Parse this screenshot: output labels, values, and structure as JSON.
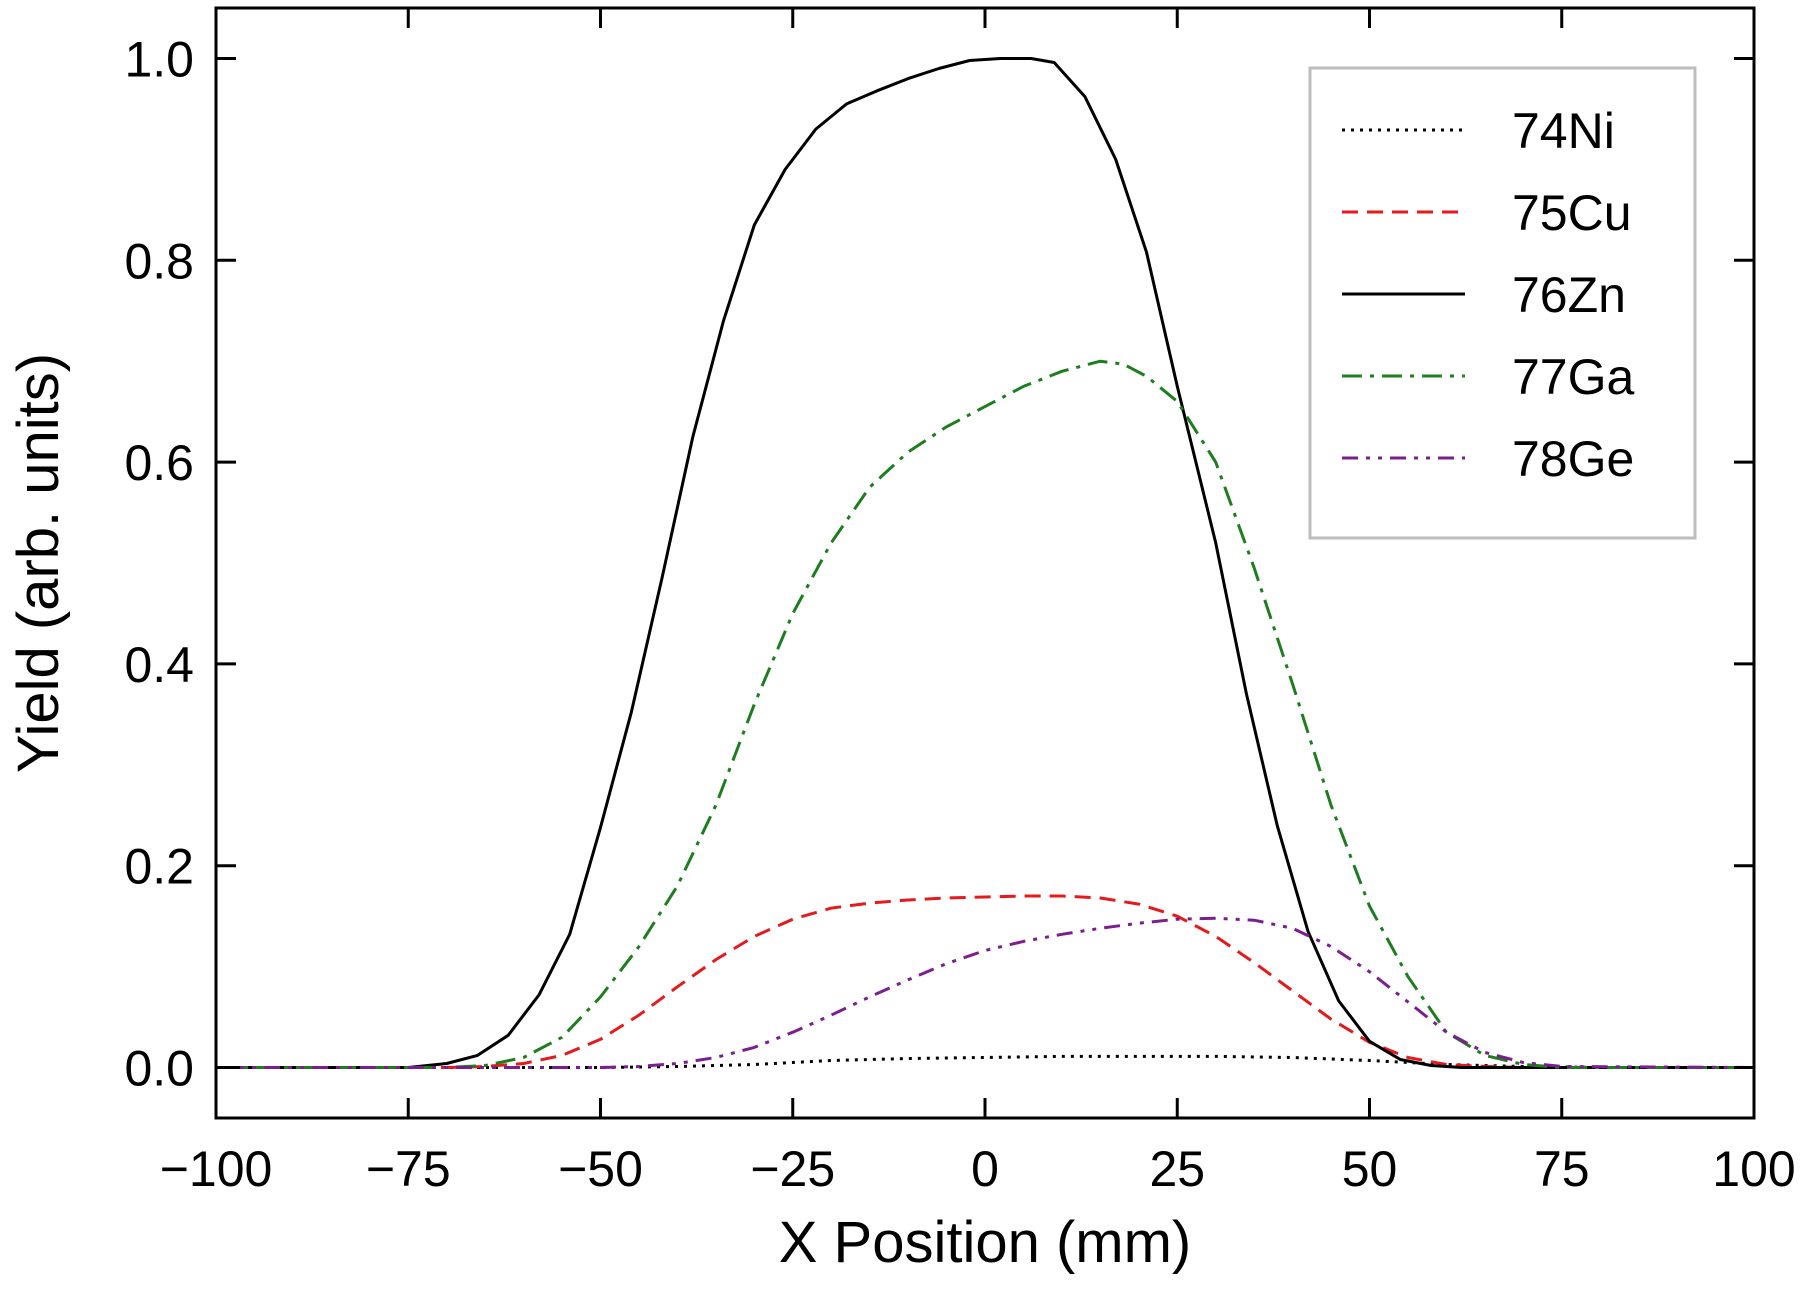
{
  "chart_data": {
    "type": "line",
    "xlabel": "X Position (mm)",
    "ylabel": "Yield (arb. units)",
    "xlim": [
      -100,
      100
    ],
    "ylim": [
      -0.05,
      1.05
    ],
    "xticks": [
      -100,
      -75,
      -50,
      -25,
      0,
      25,
      50,
      75,
      100
    ],
    "xtick_labels": [
      "−100",
      "−75",
      "−50",
      "−25",
      "0",
      "25",
      "50",
      "75",
      "100"
    ],
    "yticks": [
      0.0,
      0.2,
      0.4,
      0.6,
      0.8,
      1.0
    ],
    "ytick_labels": [
      "0.0",
      "0.2",
      "0.4",
      "0.6",
      "0.8",
      "1.0"
    ],
    "grid": false,
    "legend_position": "top-right",
    "series": [
      {
        "name": "74Ni",
        "color": "#000000",
        "dash": "dotted",
        "x": [
          -100,
          -75,
          -60,
          -50,
          -40,
          -30,
          -20,
          -10,
          0,
          10,
          20,
          30,
          40,
          50,
          60,
          70,
          80,
          100
        ],
        "y": [
          0,
          0,
          0,
          0,
          0.001,
          0.003,
          0.007,
          0.009,
          0.01,
          0.011,
          0.011,
          0.011,
          0.01,
          0.007,
          0.003,
          0.001,
          0,
          0
        ]
      },
      {
        "name": "75Cu",
        "color": "#e41a1c",
        "dash": "dashed",
        "x": [
          -100,
          -70,
          -65,
          -60,
          -55,
          -50,
          -45,
          -40,
          -35,
          -30,
          -25,
          -20,
          -15,
          -10,
          -5,
          0,
          5,
          10,
          15,
          20,
          25,
          30,
          35,
          40,
          45,
          50,
          55,
          60,
          65,
          70,
          80,
          100
        ],
        "y": [
          0,
          0,
          0.001,
          0.004,
          0.012,
          0.028,
          0.052,
          0.08,
          0.107,
          0.13,
          0.147,
          0.158,
          0.163,
          0.166,
          0.168,
          0.169,
          0.17,
          0.17,
          0.168,
          0.162,
          0.15,
          0.13,
          0.104,
          0.076,
          0.048,
          0.025,
          0.01,
          0.003,
          0.001,
          0,
          0,
          0
        ]
      },
      {
        "name": "76Zn",
        "color": "#000000",
        "dash": "solid",
        "x": [
          -100,
          -75,
          -70,
          -66,
          -62,
          -58,
          -54,
          -50,
          -46,
          -42,
          -38,
          -34,
          -30,
          -26,
          -22,
          -18,
          -14,
          -10,
          -6,
          -2,
          2,
          6,
          9,
          13,
          17,
          21,
          25,
          30,
          34,
          38,
          42,
          46,
          50,
          54,
          58,
          62,
          66,
          70,
          75,
          100
        ],
        "y": [
          0,
          0,
          0.004,
          0.012,
          0.032,
          0.072,
          0.132,
          0.238,
          0.352,
          0.485,
          0.625,
          0.74,
          0.835,
          0.89,
          0.93,
          0.955,
          0.968,
          0.98,
          0.99,
          0.998,
          1.0,
          1.0,
          0.996,
          0.962,
          0.9,
          0.808,
          0.675,
          0.52,
          0.37,
          0.24,
          0.135,
          0.066,
          0.026,
          0.008,
          0.002,
          0,
          0,
          0,
          0,
          0
        ]
      },
      {
        "name": "77Ga",
        "color": "#1e7d1e",
        "dash": "dashdot",
        "x": [
          -100,
          -70,
          -65,
          -60,
          -55,
          -50,
          -45,
          -40,
          -35,
          -30,
          -25,
          -20,
          -15,
          -10,
          -5,
          0,
          5,
          10,
          15,
          18,
          21,
          25,
          30,
          35,
          40,
          45,
          50,
          55,
          60,
          65,
          70,
          75,
          100
        ],
        "y": [
          0,
          0,
          0.002,
          0.01,
          0.03,
          0.07,
          0.12,
          0.18,
          0.26,
          0.36,
          0.45,
          0.52,
          0.575,
          0.61,
          0.635,
          0.655,
          0.675,
          0.69,
          0.7,
          0.697,
          0.685,
          0.66,
          0.6,
          0.495,
          0.38,
          0.26,
          0.16,
          0.09,
          0.035,
          0.012,
          0.003,
          0,
          0
        ]
      },
      {
        "name": "78Ge",
        "color": "#7b1f8f",
        "dash": "dashdotdot",
        "x": [
          -100,
          -50,
          -45,
          -40,
          -35,
          -30,
          -25,
          -20,
          -15,
          -10,
          -5,
          0,
          5,
          10,
          15,
          20,
          25,
          30,
          35,
          40,
          45,
          50,
          55,
          60,
          65,
          70,
          75,
          100
        ],
        "y": [
          0,
          0,
          0.001,
          0.004,
          0.01,
          0.02,
          0.035,
          0.052,
          0.07,
          0.087,
          0.103,
          0.116,
          0.125,
          0.132,
          0.138,
          0.143,
          0.147,
          0.148,
          0.146,
          0.138,
          0.12,
          0.095,
          0.065,
          0.035,
          0.015,
          0.005,
          0.001,
          0
        ]
      }
    ]
  }
}
